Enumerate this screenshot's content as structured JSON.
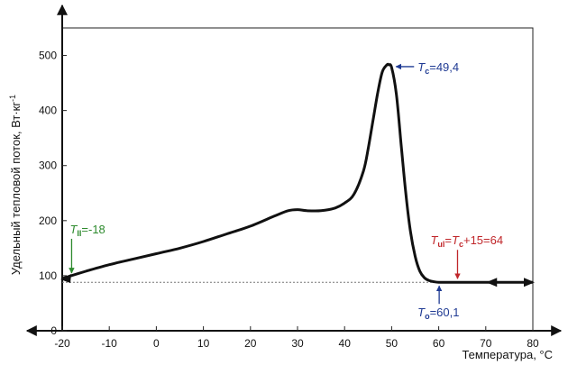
{
  "chart_data": {
    "type": "line",
    "title": "",
    "xlabel": "Температура, °C",
    "ylabel": "Удельный тепловой поток, Вт·кг",
    "ylabel_sup": "-1",
    "xlim": [
      -20,
      80
    ],
    "ylim": [
      0,
      550
    ],
    "xticks": [
      -20,
      -10,
      0,
      10,
      20,
      30,
      40,
      50,
      60,
      70,
      80
    ],
    "yticks": [
      0,
      100,
      200,
      300,
      400,
      500
    ],
    "grid": false,
    "series": [
      {
        "x": [
          -20,
          -15,
          -10,
          -5,
          0,
          5,
          10,
          15,
          20,
          25,
          28,
          30,
          32,
          35,
          38,
          40,
          42,
          44,
          45,
          46,
          47,
          48,
          49,
          49.4,
          50,
          51,
          52,
          53,
          54,
          55,
          56,
          57,
          58,
          59,
          60,
          62,
          65,
          70,
          75,
          80
        ],
        "y": [
          95,
          108,
          120,
          130,
          140,
          150,
          162,
          176,
          190,
          208,
          218,
          220,
          218,
          218,
          223,
          232,
          248,
          290,
          330,
          380,
          430,
          470,
          483,
          483,
          478,
          430,
          340,
          250,
          180,
          135,
          108,
          96,
          91,
          89,
          88,
          88,
          88,
          88,
          88,
          88
        ]
      }
    ],
    "baseline": {
      "y": 88,
      "x_from": -20,
      "x_to": 80
    },
    "annotations": {
      "tii": {
        "main": "T",
        "sub": "II",
        "rest": "=-18",
        "color": "#2e8b2e",
        "x": -18,
        "y": 95
      },
      "tc": {
        "main": "T",
        "sub": "c",
        "rest": "=49,4",
        "color": "#1f3a93",
        "x": 49.4,
        "y": 483
      },
      "to": {
        "main": "T",
        "sub": "o",
        "rest": "=60,1",
        "color": "#1f3a93",
        "x": 60.1,
        "y": 88
      },
      "tul": {
        "main": "T",
        "sub": "ul",
        "eq": "=",
        "main2": "T",
        "sub2": "c",
        "rest": "+15=64",
        "color": "#c0262a",
        "x": 64,
        "y": 88
      }
    }
  }
}
